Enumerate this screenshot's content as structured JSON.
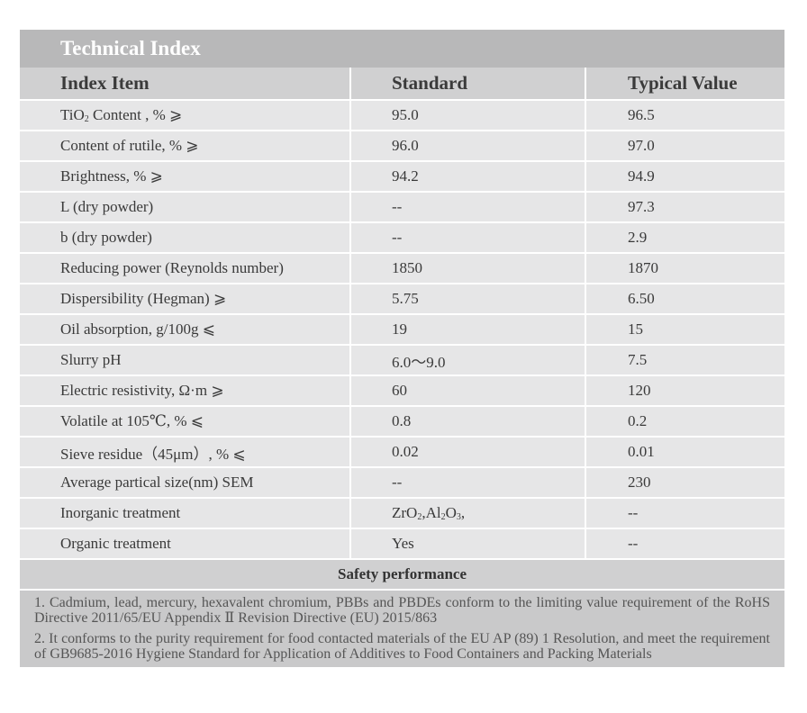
{
  "title": "Technical Index",
  "headers": {
    "index_item": "Index Item",
    "standard": "Standard",
    "typical_value": "Typical Value"
  },
  "rows": [
    {
      "item_parts": [
        "TiO",
        "2",
        " Content , %   ⩾"
      ],
      "standard": "95.0",
      "typical": "96.5"
    },
    {
      "item": "Content of rutile, %   ⩾",
      "standard": "96.0",
      "typical": "97.0"
    },
    {
      "item": "Brightness, % ⩾",
      "standard": "94.2",
      "typical": "94.9"
    },
    {
      "item": "L (dry powder)",
      "standard": "--",
      "typical": "97.3"
    },
    {
      "item": "b (dry powder)",
      "standard": "--",
      "typical": "2.9"
    },
    {
      "item": "Reducing power (Reynolds number)",
      "standard": "1850",
      "typical": "1870"
    },
    {
      "item": "Dispersibility (Hegman) ⩾",
      "standard": "5.75",
      "typical": "6.50"
    },
    {
      "item": "Oil absorption, g/100g ⩽",
      "standard": "19",
      "typical": "15"
    },
    {
      "item": "Slurry pH",
      "standard": "6.0～9.0",
      "typical": "7.5"
    },
    {
      "item": "Electric resistivity, Ω·m   ⩾",
      "standard": "60",
      "typical": "120"
    },
    {
      "item": "Volatile at 105℃, %   ⩽",
      "standard": "0.8",
      "typical": "0.2"
    },
    {
      "item": "Sieve residue（45μm）, % ⩽",
      "standard": "0.02",
      "typical": "0.01"
    },
    {
      "item": "Average partical size(nm) SEM",
      "standard": "--",
      "typical": "230"
    },
    {
      "item": "Inorganic  treatment",
      "standard_parts": [
        "ZrO",
        "2",
        ",Al",
        "2",
        "O",
        "3",
        ","
      ],
      "typical": "--"
    },
    {
      "item": "Organic treatment",
      "standard": "Yes",
      "typical": "--"
    }
  ],
  "safety": {
    "title": "Safety performance",
    "notes": [
      "1. Cadmium, lead, mercury, hexavalent chromium, PBBs and PBDEs conform to the limiting value requirement of the RoHS Directive 2011/65/EU Appendix Ⅱ Revision Directive (EU) 2015/863",
      "2. It conforms to the purity requirement for food contacted materials of the EU AP (89) 1 Resolution, and meet the requirement of GB9685-2016 Hygiene Standard for Application of Additives to Food Containers and Packing Materials"
    ]
  }
}
